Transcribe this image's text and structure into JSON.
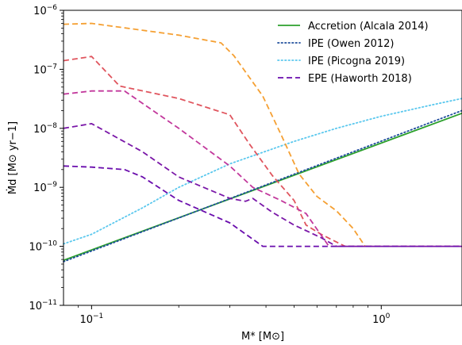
{
  "chart_data": {
    "type": "line",
    "title": "",
    "xlabel": "M* [M⊙]",
    "ylabel": "Ṁd [M⊙ yr−1]",
    "xscale": "log",
    "yscale": "log",
    "xlim": [
      0.08,
      1.9
    ],
    "ylim": [
      1e-11,
      1e-06
    ],
    "grid": false,
    "legend_position": "top-right",
    "x_ticks": [
      {
        "value": 0.1,
        "label": "10",
        "exp": "−1"
      },
      {
        "value": 1.0,
        "label": "10",
        "exp": "0"
      }
    ],
    "y_ticks": [
      {
        "value": 1e-11,
        "label": "10",
        "exp": "−11"
      },
      {
        "value": 1e-10,
        "label": "10",
        "exp": "−10"
      },
      {
        "value": 1e-09,
        "label": "10",
        "exp": "−9"
      },
      {
        "value": 1e-08,
        "label": "10",
        "exp": "−8"
      },
      {
        "value": 1e-07,
        "label": "10",
        "exp": "−7"
      },
      {
        "value": 1e-06,
        "label": "10",
        "exp": "−6"
      }
    ],
    "legend": [
      {
        "label": "Accretion (Alcala 2014)",
        "color": "#2ca02c",
        "style": "solid"
      },
      {
        "label": "IPE (Owen 2012)",
        "color": "#1f4e9c",
        "style": "dotted"
      },
      {
        "label": "IPE (Picogna 2019)",
        "color": "#5bc8ee",
        "style": "dotted"
      },
      {
        "label": "EPE (Haworth 2018)",
        "color": "#6a0dad",
        "style": "dashed"
      }
    ],
    "series": [
      {
        "name": "Accretion (Alcala 2014)",
        "color": "#2ca02c",
        "style": "solid",
        "x": [
          0.08,
          1.9
        ],
        "y": [
          5.8e-11,
          1.8e-08
        ]
      },
      {
        "name": "IPE (Owen 2012)",
        "color": "#1f4e9c",
        "style": "dotted",
        "x": [
          0.08,
          1.9
        ],
        "y": [
          5.5e-11,
          2e-08
        ]
      },
      {
        "name": "IPE (Picogna 2019)",
        "color": "#5bc8ee",
        "style": "dotted",
        "x": [
          0.08,
          0.1,
          0.15,
          0.2,
          0.3,
          0.5,
          0.7,
          1.0,
          1.5,
          1.9
        ],
        "y": [
          1.1e-10,
          1.6e-10,
          4.5e-10,
          1e-09,
          2.5e-09,
          6e-09,
          1e-08,
          1.6e-08,
          2.5e-08,
          3.2e-08
        ]
      },
      {
        "color": "#f5a033",
        "style": "dashed",
        "x": [
          0.08,
          0.1,
          0.2,
          0.28,
          0.31,
          0.39,
          0.45,
          0.52,
          0.6,
          0.7,
          0.8,
          0.88
        ],
        "y": [
          5.8e-07,
          6e-07,
          3.8e-07,
          2.8e-07,
          1.7e-07,
          3.5e-08,
          8e-09,
          1.7e-09,
          7e-10,
          4e-10,
          2e-10,
          1e-10
        ]
      },
      {
        "color": "#e0555e",
        "style": "dashed",
        "x": [
          0.08,
          0.1,
          0.125,
          0.2,
          0.3,
          0.35,
          0.42,
          0.5,
          0.55,
          0.62,
          0.75,
          1.9
        ],
        "y": [
          1.4e-07,
          1.65e-07,
          5.2e-08,
          3.2e-08,
          1.7e-08,
          5.5e-09,
          1.6e-09,
          6e-10,
          2.3e-10,
          1.6e-10,
          1e-10,
          1e-10
        ]
      },
      {
        "color": "#c2389c",
        "style": "dashed",
        "x": [
          0.08,
          0.1,
          0.13,
          0.2,
          0.3,
          0.36,
          0.45,
          0.55,
          0.66,
          1.9
        ],
        "y": [
          3.8e-08,
          4.3e-08,
          4.3e-08,
          1e-08,
          2.3e-09,
          1e-09,
          6e-10,
          3.6e-10,
          1e-10,
          1e-10
        ]
      },
      {
        "color": "#7a17a8",
        "style": "dashed",
        "x": [
          0.08,
          0.1,
          0.15,
          0.2,
          0.3,
          0.34,
          0.36,
          0.42,
          0.5,
          0.62,
          0.7,
          1.9
        ],
        "y": [
          1e-08,
          1.2e-08,
          4e-09,
          1.5e-09,
          6.5e-10,
          5.8e-10,
          6.5e-10,
          3.8e-10,
          2.3e-10,
          1.4e-10,
          1e-10,
          1e-10
        ]
      },
      {
        "name": "EPE (Haworth 2018)",
        "color": "#6a0dad",
        "style": "dashed",
        "x": [
          0.08,
          0.1,
          0.13,
          0.15,
          0.2,
          0.3,
          0.39,
          1.9
        ],
        "y": [
          2.3e-09,
          2.2e-09,
          2e-09,
          1.5e-09,
          6e-10,
          2.5e-10,
          1e-10,
          1e-10
        ]
      }
    ]
  }
}
